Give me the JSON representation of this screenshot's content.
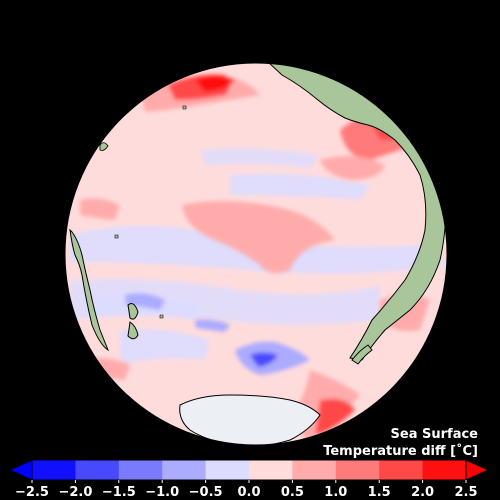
{
  "title_line1": "Sea Surface",
  "title_line2": "Temperature diff [˚C]",
  "colorbar": {
    "ticks": [
      "−2.5",
      "−2.0",
      "−1.5",
      "−1.0",
      "−0.5",
      "0.0",
      "0.5",
      "1.0",
      "1.5",
      "2.0",
      "2.5"
    ],
    "colors": [
      "#1010ff",
      "#4848ff",
      "#7a7aff",
      "#ababff",
      "#dcdcff",
      "#ffdcdc",
      "#ffabab",
      "#ff7a7a",
      "#ff4848",
      "#ff1010"
    ],
    "under_color": "#0000ff",
    "over_color": "#ff0000"
  },
  "colors": {
    "background": "#000000",
    "ocean_base": "#ffdcdc",
    "land": "#a9c59a",
    "antarctica": "#eceff3"
  }
}
